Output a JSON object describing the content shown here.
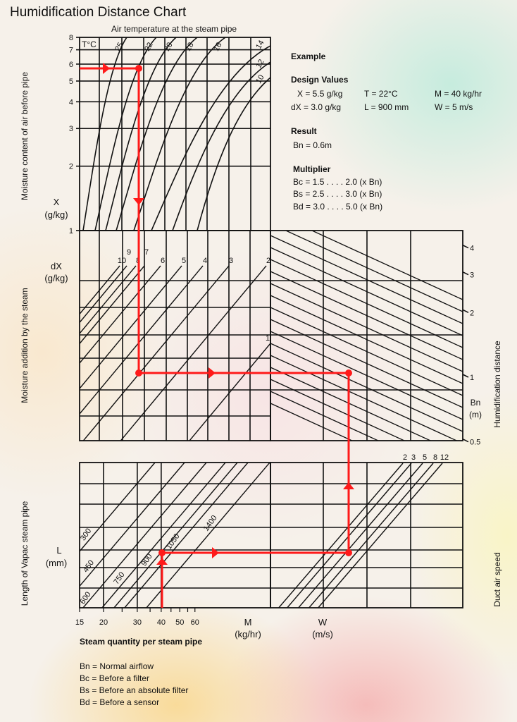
{
  "title": "Humidification Distance Chart",
  "axis_labels": {
    "top": "Air temperature at the steam pipe",
    "temp_unit": "T°C",
    "left_top": "Moisture content of air before pipe",
    "x_symbol": "X",
    "x_unit": "(g/kg)",
    "left_mid": "Moisture addition by the steam",
    "dx_symbol": "dX",
    "dx_unit": "(g/kg)",
    "left_bottom": "Length of Vapac steam pipe",
    "l_symbol": "L",
    "l_unit": "(mm)",
    "right_mid": "Humidification distance",
    "bn_symbol": "Bn",
    "bn_unit": "(m)",
    "right_bottom": "Duct air speed",
    "m_symbol": "M",
    "m_unit": "(kg/hr)",
    "w_symbol": "W",
    "w_unit": "(m/s)",
    "bottom": "Steam quantity per steam pipe"
  },
  "example": {
    "heading": "Example",
    "design_heading": "Design Values",
    "design": [
      "X = 5.5 g/kg",
      "T = 22°C",
      "M = 40 kg/hr",
      "dX = 3.0 g/kg",
      "L = 900 mm",
      "W = 5 m/s"
    ],
    "result_heading": "Result",
    "result": "Bn = 0.6m",
    "multiplier_heading": "Multiplier",
    "multipliers": [
      "Bc = 1.5 . . . . 2.0 (x Bn)",
      "Bs = 2.5 . . . . 3.0 (x Bn)",
      "Bd = 3.0 . . . . 5.0 (x Bn)"
    ]
  },
  "legend": [
    "Bn = Normal airflow",
    "Bc = Before a filter",
    "Bs = Before an absolute filter",
    "Bd = Before a sensor"
  ],
  "colors": {
    "grid": "#111111",
    "path": "#ff1a1a"
  },
  "chart_data": {
    "type": "line",
    "title": "Humidification Distance Chart",
    "grid": true,
    "x_axis_ticks": [
      "15",
      "20",
      "30",
      "40",
      "50",
      "60"
    ],
    "x_axis_scale": "log",
    "x_axis_range": [
      15,
      60
    ],
    "x_ticks_y_axis": [
      "8",
      "7",
      "6",
      "5",
      "4",
      "3",
      "2",
      "1"
    ],
    "x_ticks_values": [
      8,
      7,
      6,
      5,
      4,
      3,
      2,
      1
    ],
    "x_scale": "log",
    "bn_ticks": [
      "4",
      "3",
      "2",
      "1",
      "0.5"
    ],
    "bn_values": [
      4,
      3,
      2,
      1,
      0.5
    ],
    "bn_scale": "log",
    "temperature_curves": [
      "25",
      "22",
      "20",
      "18",
      "16",
      "14",
      "12",
      "10"
    ],
    "dx_lines": [
      "10",
      "9",
      "8",
      "7",
      "6",
      "5",
      "4",
      "3",
      "2",
      "1"
    ],
    "length_lines": [
      "300",
      "450",
      "600",
      "750",
      "900",
      "1050",
      "1400"
    ],
    "speed_lines": [
      "2",
      "3",
      "5",
      "8",
      "12"
    ],
    "example_path": {
      "X": 5.5,
      "T": 22,
      "dX": 3.0,
      "Bn": 0.6,
      "W": 5,
      "L": 900,
      "M": 40
    }
  }
}
